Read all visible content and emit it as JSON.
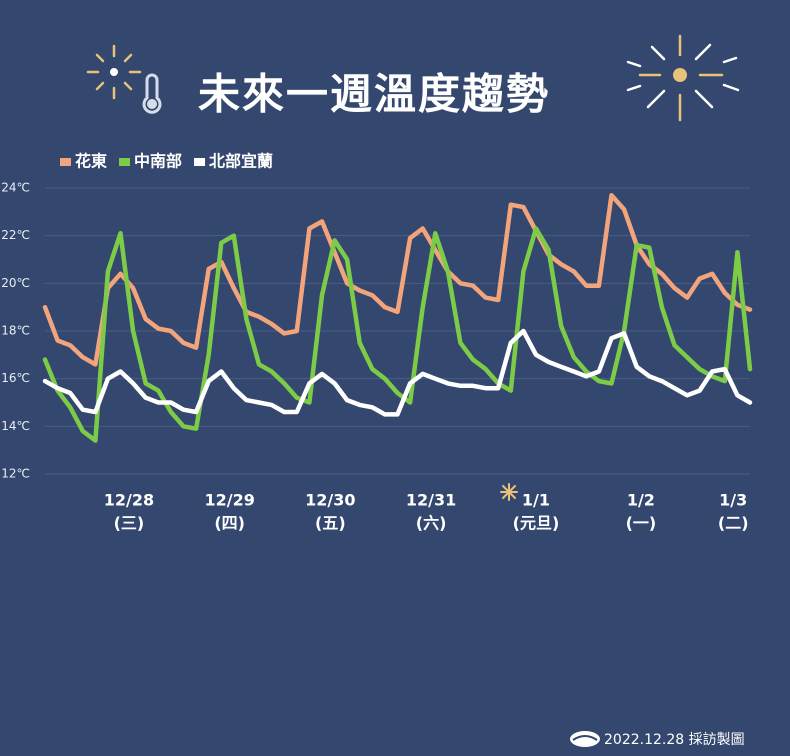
{
  "chart_data": {
    "type": "line",
    "title": "未來一週溫度趨勢",
    "footer": "2022.12.28 採訪製圖",
    "x": [
      0,
      3,
      6,
      9,
      12,
      15,
      18,
      21,
      24,
      27,
      30,
      33,
      36,
      39,
      42,
      45,
      48,
      51,
      54,
      57,
      60,
      63,
      66,
      69,
      72,
      75,
      78,
      81,
      84,
      87,
      90,
      93,
      96,
      99,
      102,
      105,
      108,
      111,
      114,
      117,
      120,
      123,
      126,
      129,
      132,
      135,
      138,
      141,
      144,
      147,
      150,
      153,
      156,
      159,
      162,
      165,
      168
    ],
    "xlim": [
      0,
      168
    ],
    "xticks": [
      {
        "value": 20,
        "label": "12/28"
      },
      {
        "value": 44,
        "label": "12/29"
      },
      {
        "value": 68,
        "label": "12/30"
      },
      {
        "value": 92,
        "label": "12/31"
      },
      {
        "value": 117,
        "label": "1/1"
      },
      {
        "value": 142,
        "label": "1/2"
      },
      {
        "value": 164,
        "label": "1/3"
      }
    ],
    "xtick_sublabels": [
      "(三)",
      "(四)",
      "(五)",
      "(六)",
      "(元旦)",
      "(一)",
      "(二)"
    ],
    "ylim": [
      12,
      24
    ],
    "yticks": [
      {
        "value": 12,
        "label": "12℃"
      },
      {
        "value": 14,
        "label": "14℃"
      },
      {
        "value": 16,
        "label": "16℃"
      },
      {
        "value": 18,
        "label": "18℃"
      },
      {
        "value": 20,
        "label": "20℃"
      },
      {
        "value": 22,
        "label": "22℃"
      },
      {
        "value": 24,
        "label": "24℃"
      }
    ],
    "grid": true,
    "legend": "top-left",
    "series": [
      {
        "name": "花東",
        "color": "#f2a57c",
        "values": [
          19.0,
          17.6,
          17.4,
          16.9,
          16.6,
          19.8,
          20.4,
          19.8,
          18.5,
          18.1,
          18.0,
          17.5,
          17.3,
          20.6,
          20.9,
          19.8,
          18.8,
          18.6,
          18.3,
          17.9,
          18.0,
          22.3,
          22.6,
          21.3,
          20.0,
          19.7,
          19.5,
          19.0,
          18.8,
          21.9,
          22.3,
          21.4,
          20.5,
          20.0,
          19.9,
          19.4,
          19.3,
          23.3,
          23.2,
          22.2,
          21.2,
          20.8,
          20.5,
          19.9,
          19.9,
          23.7,
          23.1,
          21.6,
          20.8,
          20.4,
          19.8,
          19.4,
          20.2,
          20.4,
          19.6,
          19.1,
          18.9
        ]
      },
      {
        "name": "中南部",
        "color": "#7dcc48",
        "values": [
          16.8,
          15.5,
          14.8,
          13.8,
          13.4,
          20.5,
          22.1,
          18.0,
          15.8,
          15.5,
          14.6,
          14.0,
          13.9,
          17.0,
          21.7,
          22.0,
          18.5,
          16.6,
          16.3,
          15.8,
          15.2,
          15.0,
          19.5,
          21.8,
          21.0,
          17.5,
          16.4,
          16.0,
          15.4,
          15.0,
          19.0,
          22.1,
          20.5,
          17.5,
          16.8,
          16.4,
          15.8,
          15.5,
          20.5,
          22.3,
          21.4,
          18.2,
          16.9,
          16.3,
          15.9,
          15.8,
          18.0,
          21.6,
          21.5,
          19.0,
          17.4,
          16.9,
          16.4,
          16.1,
          15.9,
          21.3,
          16.4
        ]
      },
      {
        "name": "北部宜蘭",
        "color": "#ffffff",
        "values": [
          15.9,
          15.6,
          15.4,
          14.7,
          14.6,
          16.0,
          16.3,
          15.8,
          15.2,
          15.0,
          15.0,
          14.7,
          14.6,
          15.9,
          16.3,
          15.6,
          15.1,
          15.0,
          14.9,
          14.6,
          14.6,
          15.8,
          16.2,
          15.8,
          15.1,
          14.9,
          14.8,
          14.5,
          14.5,
          15.8,
          16.2,
          16.0,
          15.8,
          15.7,
          15.7,
          15.6,
          15.6,
          17.5,
          18.0,
          17.0,
          16.7,
          16.5,
          16.3,
          16.1,
          16.3,
          17.7,
          17.9,
          16.5,
          16.1,
          15.9,
          15.6,
          15.3,
          15.5,
          16.3,
          16.4,
          15.3,
          15.0
        ]
      }
    ]
  }
}
